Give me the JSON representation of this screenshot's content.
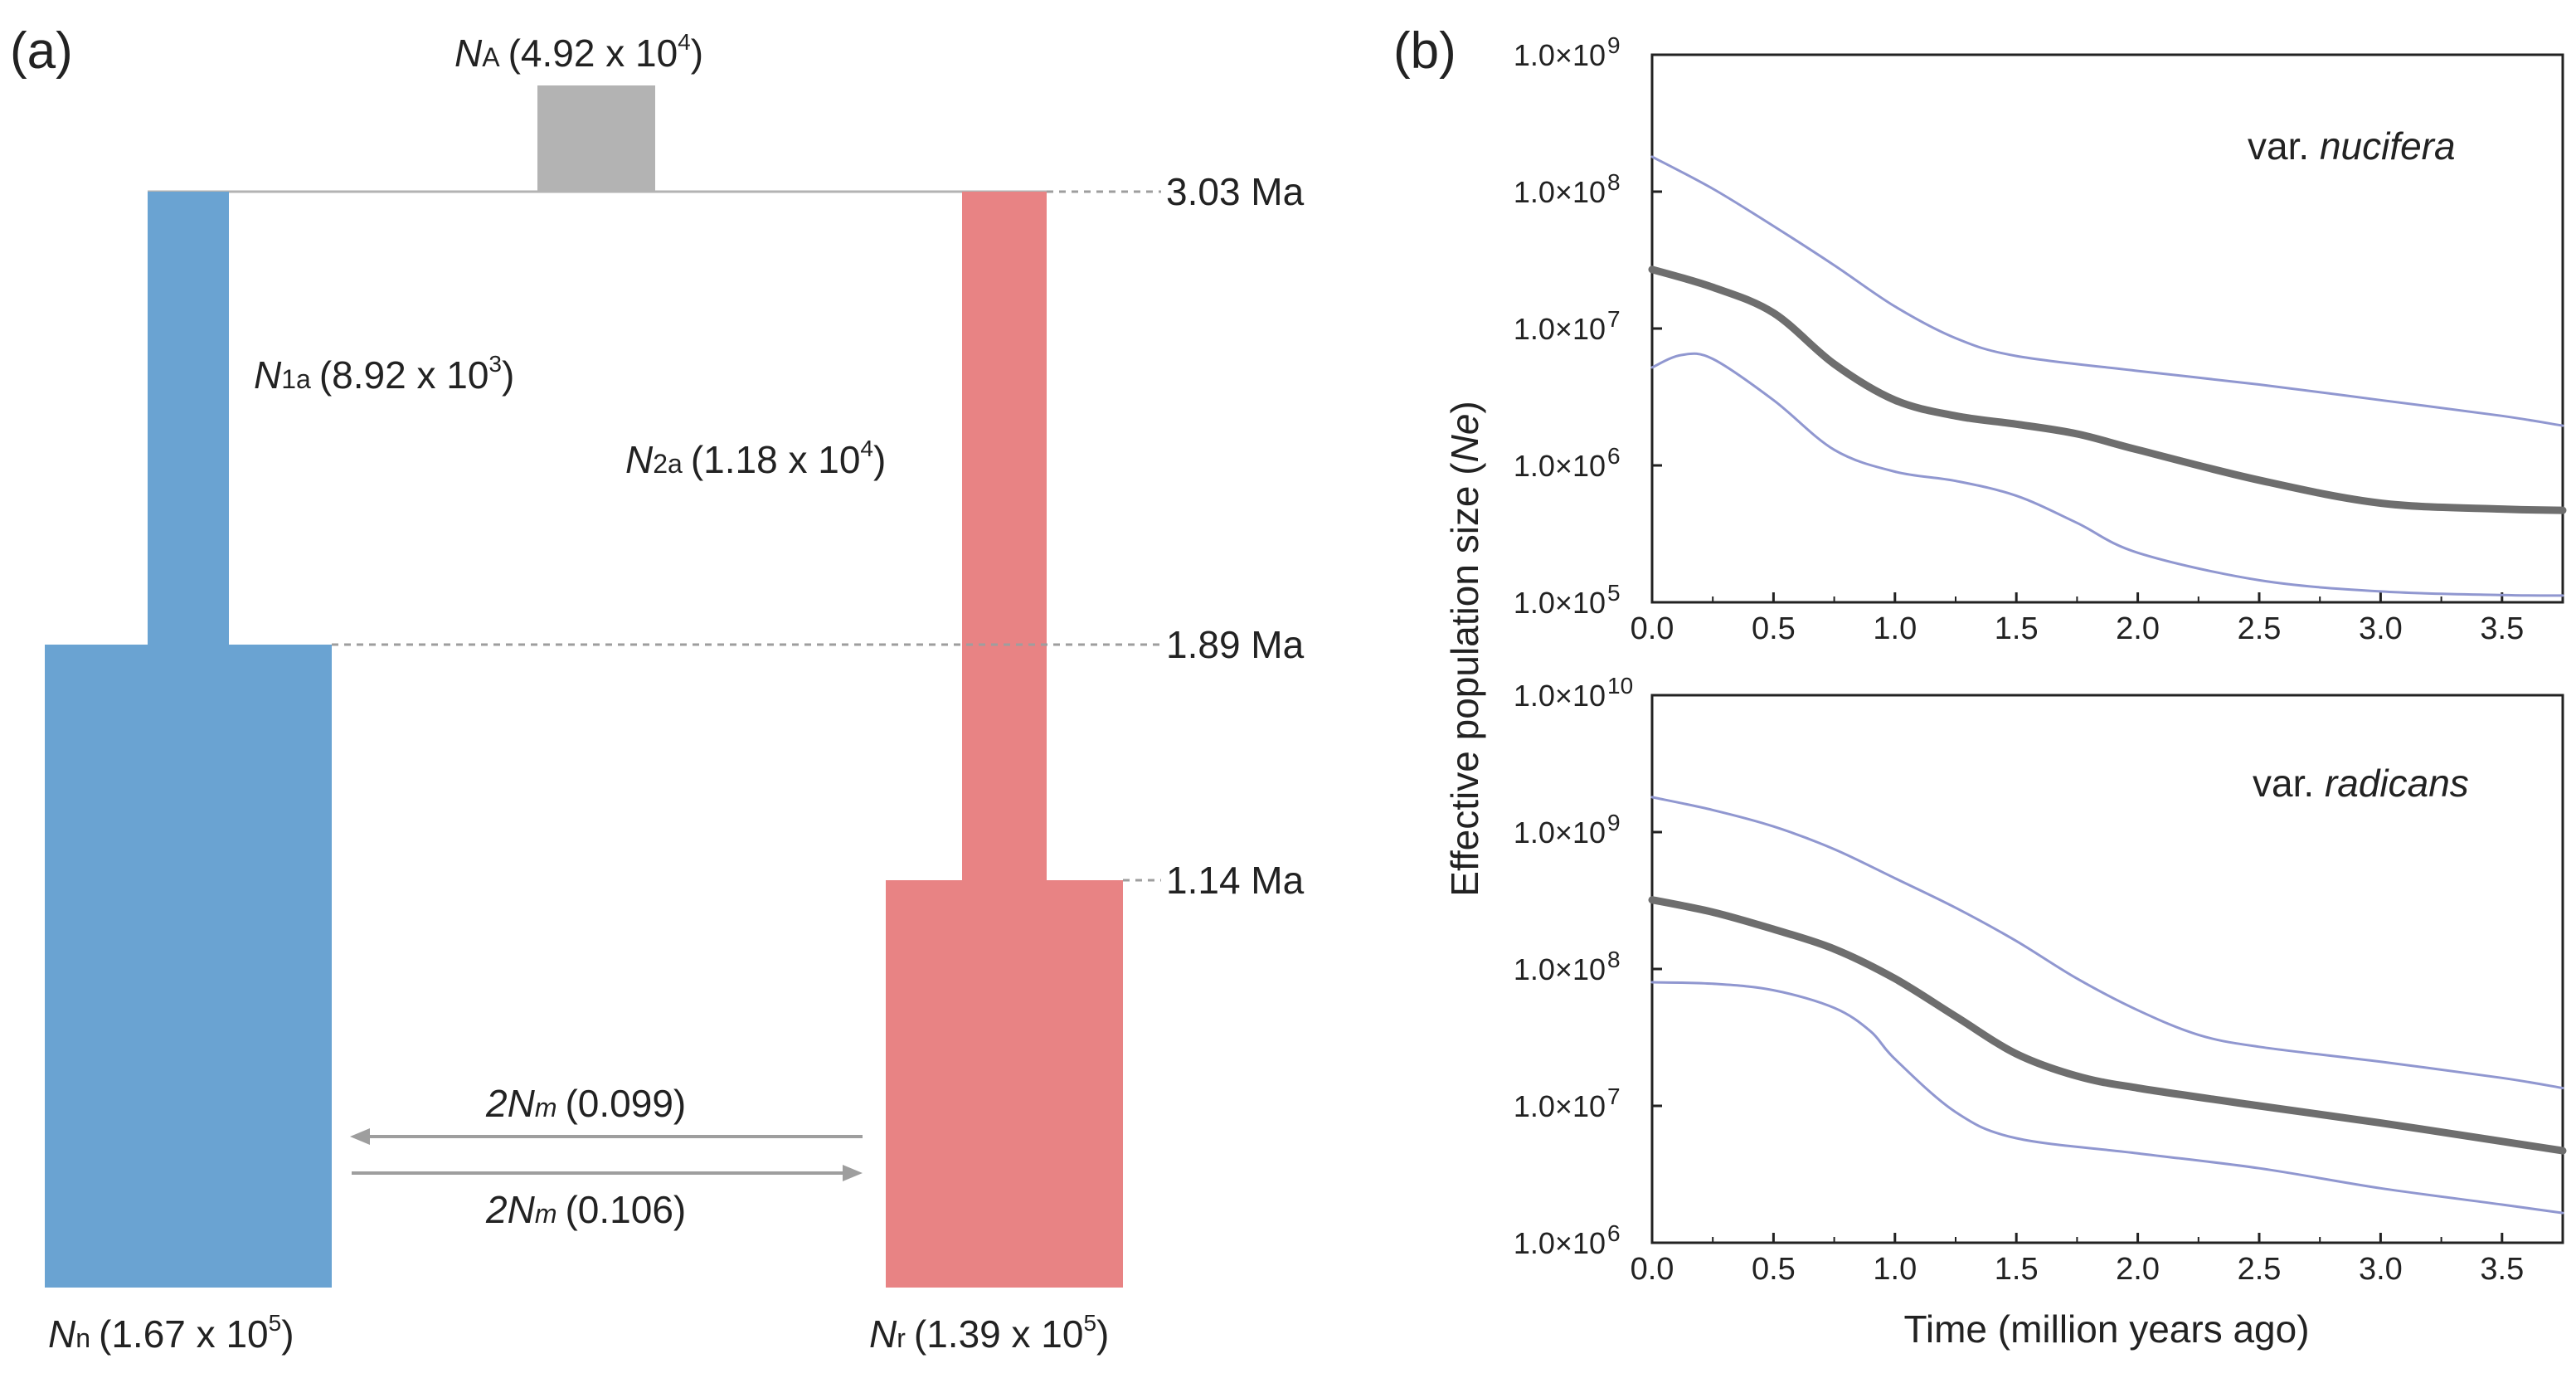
{
  "colors": {
    "nucifera_blue": "#6aa3d2",
    "radicans_red": "#e88384",
    "ancestral_gray": "#b3b3b3",
    "median_line": "#6e6e6e",
    "ci_line": "#9097d0",
    "dash": "#9e9e9e",
    "arrow": "#9e9e9e"
  },
  "panel_a": {
    "label": "(a)",
    "NA": {
      "sym": "N",
      "sub": "A",
      "val": "(4.92 x 10",
      "exp": "4",
      "close": ")"
    },
    "N1a": {
      "sym": "N",
      "sub": "1a",
      "val": "(8.92 x 10",
      "exp": "3",
      "close": ")"
    },
    "N2a": {
      "sym": "N",
      "sub": "2a",
      "val": "(1.18 x 10",
      "exp": "4",
      "close": ")"
    },
    "Nn": {
      "sym": "N",
      "sub": "n",
      "val": "(1.67 x 10",
      "exp": "5",
      "close": ")"
    },
    "Nr": {
      "sym": "N",
      "sub": "r",
      "val": "(1.39 x 10",
      "exp": "5",
      "close": ")"
    },
    "times": [
      "3.03 Ma",
      "1.89 Ma",
      "1.14 Ma"
    ],
    "mig_top": {
      "sym": "2N",
      "sub": "m",
      "val": "(0.099)"
    },
    "mig_bottom": {
      "sym": "2N",
      "sub": "m",
      "val": "(0.106)"
    }
  },
  "chart_data": [
    {
      "type": "line",
      "panel_label": "(b)",
      "annotation": "var. nucifera",
      "annotation_prefix": "var. ",
      "annotation_name": "nucifera",
      "xlim": [
        0,
        3.75
      ],
      "xticks": [
        "0.0",
        "0.5",
        "1.0",
        "1.5",
        "2.0",
        "2.5",
        "3.0",
        "3.5"
      ],
      "ylim_log10": [
        5,
        9
      ],
      "yticks": [
        {
          "mant": "1.0×10",
          "exp": "5"
        },
        {
          "mant": "1.0×10",
          "exp": "6"
        },
        {
          "mant": "1.0×10",
          "exp": "7"
        },
        {
          "mant": "1.0×10",
          "exp": "8"
        },
        {
          "mant": "1.0×10",
          "exp": "9"
        }
      ],
      "y_scale": "log",
      "series": [
        {
          "role": "upper",
          "x": [
            0.0,
            0.25,
            0.5,
            0.75,
            1.0,
            1.25,
            1.5,
            2.0,
            2.5,
            3.0,
            3.5,
            3.75
          ],
          "y": [
            180000000.0,
            105000000.0,
            56000000.0,
            29000000.0,
            14500000.0,
            8500000.0,
            6300000.0,
            4900000.0,
            3900000.0,
            3000000.0,
            2300000.0,
            1950000.0
          ]
        },
        {
          "role": "median",
          "x": [
            0.0,
            0.25,
            0.5,
            0.75,
            1.0,
            1.25,
            1.5,
            1.75,
            2.0,
            2.5,
            3.0,
            3.5,
            3.75
          ],
          "y": [
            27000000.0,
            20000000.0,
            13000000.0,
            5500000.0,
            3000000.0,
            2300000.0,
            2000000.0,
            1700000.0,
            1300000.0,
            780000.0,
            530000.0,
            480000.0,
            470000.0
          ]
        },
        {
          "role": "lower",
          "x": [
            0.0,
            0.12,
            0.25,
            0.5,
            0.75,
            1.0,
            1.25,
            1.5,
            1.75,
            2.0,
            2.5,
            3.0,
            3.5,
            3.75
          ],
          "y": [
            5200000.0,
            6400000.0,
            6000000.0,
            3000000.0,
            1300000.0,
            900000.0,
            770000.0,
            600000.0,
            380000.0,
            230000.0,
            145000.0,
            120000.0,
            113000.0,
            112000.0
          ]
        }
      ]
    },
    {
      "type": "line",
      "annotation": "var. radicans",
      "annotation_prefix": "var. ",
      "annotation_name": "radicans",
      "xlim": [
        0,
        3.75
      ],
      "xticks": [
        "0.0",
        "0.5",
        "1.0",
        "1.5",
        "2.0",
        "2.5",
        "3.0",
        "3.5"
      ],
      "xlabel": "Time (million years ago)",
      "ylabel": "Effective population size (Ne)",
      "ylabel_prefix": "Effective population size (",
      "ylabel_italic": "Ne",
      "ylabel_suffix": ")",
      "ylim_log10": [
        6,
        10
      ],
      "yticks": [
        {
          "mant": "1.0×10",
          "exp": "6"
        },
        {
          "mant": "1.0×10",
          "exp": "7"
        },
        {
          "mant": "1.0×10",
          "exp": "8"
        },
        {
          "mant": "1.0×10",
          "exp": "9"
        },
        {
          "mant": "1.0×10",
          "exp": "10"
        }
      ],
      "y_scale": "log",
      "series": [
        {
          "role": "upper",
          "x": [
            0.0,
            0.25,
            0.5,
            0.75,
            1.0,
            1.25,
            1.5,
            1.75,
            2.0,
            2.25,
            2.5,
            3.0,
            3.5,
            3.75
          ],
          "y": [
            1800000000.0,
            1450000000.0,
            1100000000.0,
            750000000.0,
            460000000.0,
            280000000.0,
            160000000.0,
            85000000.0,
            50000000.0,
            33000000.0,
            27000000.0,
            21000000.0,
            16000000.0,
            13500000.0
          ]
        },
        {
          "role": "median",
          "x": [
            0.0,
            0.25,
            0.5,
            0.75,
            1.0,
            1.25,
            1.5,
            1.75,
            2.0,
            2.5,
            3.0,
            3.5,
            3.75
          ],
          "y": [
            320000000.0,
            260000000.0,
            195000000.0,
            140000000.0,
            85000000.0,
            45000000.0,
            24000000.0,
            16500000.0,
            13500000.0,
            10000000.0,
            7500000.0,
            5500000.0,
            4700000.0
          ]
        },
        {
          "role": "lower",
          "x": [
            0.0,
            0.25,
            0.5,
            0.75,
            0.9,
            1.0,
            1.25,
            1.5,
            2.0,
            2.5,
            3.0,
            3.5,
            3.75
          ],
          "y": [
            80000000.0,
            78000000.0,
            70000000.0,
            52000000.0,
            35000000.0,
            22000000.0,
            9000000.0,
            5800000.0,
            4500000.0,
            3500000.0,
            2500000.0,
            1900000.0,
            1650000.0
          ]
        }
      ]
    }
  ]
}
